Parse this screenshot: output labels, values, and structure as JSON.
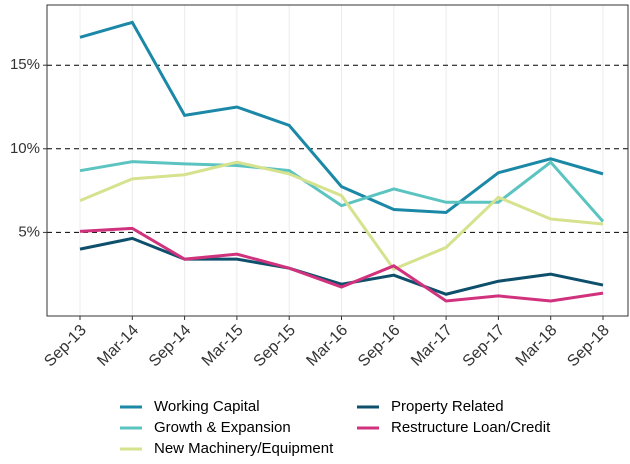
{
  "chart_data": {
    "type": "line",
    "categories": [
      "Sep-13",
      "Mar-14",
      "Sep-14",
      "Mar-15",
      "Sep-15",
      "Mar-16",
      "Sep-16",
      "Mar-17",
      "Sep-17",
      "Mar-18",
      "Sep-18"
    ],
    "series": [
      {
        "name": "Working Capital",
        "color": "#1a88a6",
        "values": [
          16.67,
          17.56,
          12.0,
          12.5,
          11.4,
          7.74,
          6.37,
          6.19,
          8.57,
          9.4,
          8.5
        ]
      },
      {
        "name": "Growth & Expansion",
        "color": "#5cc4c0",
        "values": [
          8.69,
          9.23,
          9.1,
          9.0,
          8.7,
          6.6,
          7.6,
          6.8,
          6.8,
          9.2,
          5.65
        ]
      },
      {
        "name": "New Machinery/Equipment",
        "color": "#d6e28e",
        "values": [
          6.9,
          8.2,
          8.45,
          9.2,
          8.5,
          7.2,
          2.8,
          4.1,
          7.1,
          5.8,
          5.5
        ]
      },
      {
        "name": "Property Related",
        "color": "#0e506c",
        "values": [
          4.0,
          4.64,
          3.4,
          3.4,
          2.86,
          1.9,
          2.44,
          1.3,
          2.08,
          2.5,
          1.85
        ]
      },
      {
        "name": "Restructure Loan/Credit",
        "color": "#d1327d",
        "values": [
          5.06,
          5.24,
          3.4,
          3.7,
          2.86,
          1.73,
          3.0,
          0.9,
          1.2,
          0.9,
          1.37
        ]
      }
    ],
    "ylim": [
      0,
      18.6
    ],
    "yticks": [
      {
        "value": 5,
        "label": "5%"
      },
      {
        "value": 10,
        "label": "10%"
      },
      {
        "value": 15,
        "label": "15%"
      }
    ],
    "grid": true
  }
}
